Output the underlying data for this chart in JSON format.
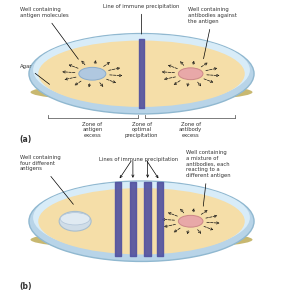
{
  "bg_color": "#ffffff",
  "agar_fill": "#f5dea8",
  "dish_outer_fill": "#b8d4e8",
  "dish_rim_light": "#d8ecf8",
  "dish_rim_dark": "#90b8d0",
  "dish_bottom": "#c8b870",
  "well_antigen_color": "#b0c8e0",
  "well_antigen_edge": "#8aaccc",
  "well_antibody_color": "#e8a8a8",
  "well_antibody_edge": "#cc8888",
  "precip_line_color": "#5050a0",
  "arrow_color": "#111111",
  "label_color": "#333333",
  "zone_brace_color": "#666666",
  "panel_a_label": "(a)",
  "panel_b_label": "(b)",
  "title_a": "Line of immune precipitation",
  "title_b": "Lines of immune precipitation",
  "label_antigen": "Well containing\nantigen molecules",
  "label_antibody": "Well containing\nantibodies against\nthe antigen",
  "label_agar": "Agar",
  "label_zone1": "Zone of\nantigen\nexcess",
  "label_zone2": "Zone of\noptimal\nprecipitation",
  "label_zone3": "Zone of\nantibody\nexcess",
  "label_b_antigen": "Well containing\nfour different\nantigens",
  "label_b_antibody": "Well containing\na mixture of\nantibodies, each\nreacting to a\ndifferent antigen",
  "label_b_lines": "Lines of immune precipitation"
}
